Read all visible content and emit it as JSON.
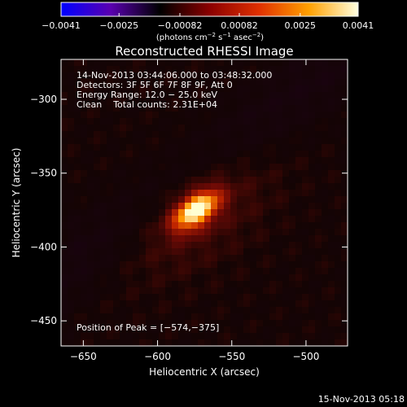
{
  "chart_data": {
    "type": "heatmap",
    "title": "Reconstructed RHESSI Image",
    "xlabel": "Heliocentric X (arcsec)",
    "ylabel": "Heliocentric Y (arcsec)",
    "xlim": [
      -665,
      -472
    ],
    "ylim": [
      -467,
      -273
    ],
    "x_ticks": [
      -650,
      -600,
      -550,
      -500
    ],
    "y_ticks": [
      -450,
      -400,
      -350,
      -300
    ],
    "x_tick_labels": [
      "−650",
      "−600",
      "−550",
      "−500"
    ],
    "y_tick_labels": [
      "−450",
      "−400",
      "−350",
      "−300"
    ],
    "colorbar": {
      "range": [
        -0.0041,
        0.0041
      ],
      "ticks": [
        -0.0041,
        -0.0025,
        -0.00082,
        0.00082,
        0.0025,
        0.0041
      ],
      "tick_labels": [
        "−0.0041",
        "−0.0025",
        "−0.00082",
        "0.00082",
        "0.0025",
        "0.0041"
      ],
      "units_base": "(photons cm",
      "units_sup1": "−2",
      "units_mid": " s",
      "units_sup2": "−1",
      "units_mid2": " asec",
      "units_sup3": "−2",
      "units_end": ")",
      "colors": [
        "#0000ff",
        "#5a00b0",
        "#000000",
        "#8b0000",
        "#e03000",
        "#ffa000",
        "#ffffe0"
      ]
    },
    "annotations": [
      "14-Nov-2013 03:44:06.000 to 03:48:32.000",
      "Detectors: 3F 5F 6F 7F 8F 9F, Att 0",
      "Energy Range: 12.0 − 25.0 keV",
      "Clean    Total counts: 2.31E+04"
    ],
    "peak_label": "Position of Peak = [−574,−375]",
    "peak": [
      -574,
      -375
    ],
    "footer": "15-Nov-2013 05:18"
  }
}
